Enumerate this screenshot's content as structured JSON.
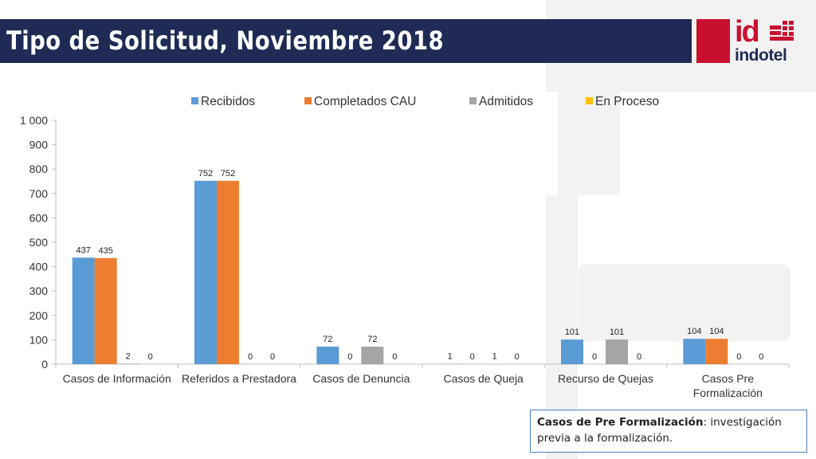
{
  "slide": {
    "title": "Tipo de Solicitud, Noviembre 2018",
    "logo_mark": "id",
    "logo_name": "indotel",
    "note_term": "Casos de Pre Formalización",
    "note_text": ": investigación previa a la formalización."
  },
  "colors": {
    "title_bar": "#1f2a55",
    "brand_red": "#c8102e",
    "recibidos": "#5b9bd5",
    "completados": "#ed7d31",
    "admitidos": "#a5a5a5",
    "en_proceso": "#ffc000"
  },
  "chart_data": {
    "type": "bar",
    "title": "",
    "xlabel": "",
    "ylabel": "",
    "ylim": [
      0,
      1000
    ],
    "yticks": [
      "0",
      "100",
      "200",
      "300",
      "400",
      "500",
      "600",
      "700",
      "800",
      "900",
      "1 000"
    ],
    "legend_position": "top",
    "grid": false,
    "categories": [
      [
        "Casos de Información"
      ],
      [
        "Referidos a Prestadora"
      ],
      [
        "Casos de Denuncia"
      ],
      [
        "Casos de Queja"
      ],
      [
        "Recurso de Quejas"
      ],
      [
        "Casos Pre",
        "Formalización"
      ]
    ],
    "series": [
      {
        "name": "Recibidos",
        "color": "#5b9bd5",
        "values": [
          437,
          752,
          72,
          1,
          101,
          104
        ]
      },
      {
        "name": "Completados CAU",
        "color": "#ed7d31",
        "values": [
          435,
          752,
          0,
          0,
          0,
          104
        ]
      },
      {
        "name": "Admitidos",
        "color": "#a5a5a5",
        "values": [
          2,
          0,
          72,
          1,
          101,
          0
        ]
      },
      {
        "name": "En Proceso",
        "color": "#ffc000",
        "values": [
          0,
          0,
          0,
          0,
          0,
          0
        ]
      }
    ]
  }
}
